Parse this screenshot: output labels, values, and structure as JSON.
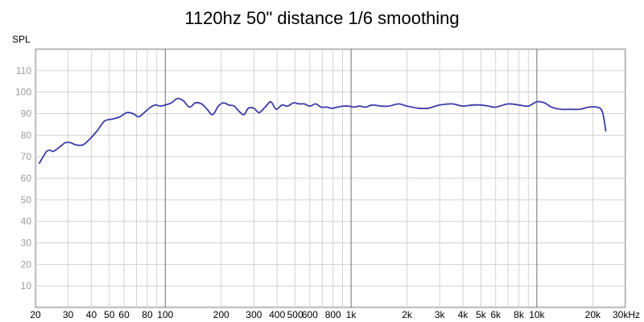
{
  "chart_data": {
    "type": "line",
    "title": "1120hz 50\" distance 1/6 smoothing",
    "ylabel": "SPL",
    "xlabel": "",
    "x_scale": "log",
    "xlim": [
      20,
      30000
    ],
    "ylim": [
      0,
      120
    ],
    "grid": true,
    "yticks": [
      10,
      20,
      30,
      40,
      50,
      60,
      70,
      80,
      90,
      100,
      110
    ],
    "xticks": [
      {
        "value": 20,
        "label": "20"
      },
      {
        "value": 30,
        "label": "30"
      },
      {
        "value": 40,
        "label": "40"
      },
      {
        "value": 50,
        "label": "50"
      },
      {
        "value": 60,
        "label": "60"
      },
      {
        "value": 80,
        "label": "80"
      },
      {
        "value": 100,
        "label": "100"
      },
      {
        "value": 200,
        "label": "200"
      },
      {
        "value": 300,
        "label": "300"
      },
      {
        "value": 400,
        "label": "400"
      },
      {
        "value": 500,
        "label": "500"
      },
      {
        "value": 600,
        "label": "600"
      },
      {
        "value": 800,
        "label": "800"
      },
      {
        "value": 1000,
        "label": "1k"
      },
      {
        "value": 2000,
        "label": "2k"
      },
      {
        "value": 3000,
        "label": "3k"
      },
      {
        "value": 4000,
        "label": "4k"
      },
      {
        "value": 5000,
        "label": "5k"
      },
      {
        "value": 6000,
        "label": "6k"
      },
      {
        "value": 8000,
        "label": "8k"
      },
      {
        "value": 10000,
        "label": "10k"
      },
      {
        "value": 20000,
        "label": "20k"
      },
      {
        "value": 30000,
        "label": "30kHz"
      }
    ],
    "line_color": "#3b3ba8",
    "series": [
      {
        "x": [
          21,
          22,
          23,
          24,
          25,
          27,
          29,
          31,
          33,
          36,
          39,
          43,
          47,
          52,
          57,
          62,
          67,
          72,
          77,
          82,
          88,
          94,
          100,
          108,
          116,
          125,
          135,
          145,
          157,
          168,
          180,
          193,
          206,
          220,
          235,
          250,
          265,
          280,
          300,
          320,
          345,
          370,
          395,
          425,
          455,
          490,
          525,
          560,
          600,
          645,
          690,
          740,
          790,
          845,
          905,
          970,
          1040,
          1110,
          1200,
          1300,
          1450,
          1600,
          1800,
          2000,
          2300,
          2600,
          3000,
          3500,
          4000,
          4500,
          5000,
          5500,
          6000,
          7000,
          8000,
          9000,
          10000,
          11000,
          12000,
          13500,
          15000,
          17000,
          19000,
          21000,
          22500,
          23500
        ],
        "y": [
          67,
          70,
          72.5,
          73,
          72.5,
          74.5,
          76.5,
          76.5,
          75.5,
          75.5,
          78,
          82,
          86.5,
          87.5,
          88.5,
          90.5,
          90,
          88.5,
          90.5,
          92.5,
          94,
          93.5,
          94,
          95,
          97,
          96,
          93,
          95,
          94.5,
          92,
          89.5,
          93.5,
          95,
          94,
          93.5,
          91,
          89.5,
          92.5,
          92.5,
          90.5,
          93,
          95.5,
          92,
          94,
          93.5,
          95,
          94.5,
          94.5,
          93.5,
          94.5,
          93,
          93,
          92.5,
          93,
          93.5,
          93.5,
          93,
          93.5,
          93,
          94,
          93.5,
          93.5,
          94.5,
          93.5,
          92.5,
          92.5,
          94,
          94.5,
          93.5,
          94,
          94,
          93.5,
          93,
          94.5,
          94,
          93.5,
          95.5,
          95,
          93,
          92,
          92,
          92,
          93,
          93,
          91,
          82
        ]
      }
    ]
  }
}
